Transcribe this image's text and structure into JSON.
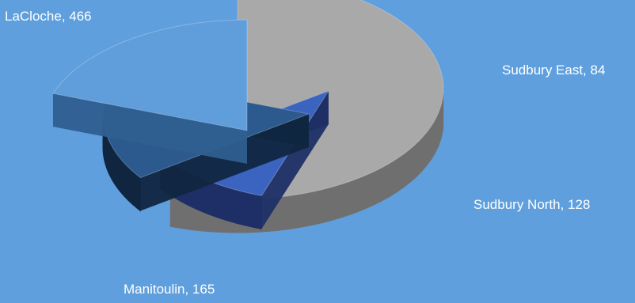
{
  "chart_data": {
    "type": "pie",
    "style": "3d-exploded",
    "title": "",
    "background": "#5f9fdd",
    "slices": [
      {
        "label": "LaCloche, 466",
        "name": "LaCloche",
        "value": 466,
        "top_color": "#a9a9a9",
        "side_color": "#6f6f6f"
      },
      {
        "label": "Sudbury East, 84",
        "name": "Sudbury East",
        "value": 84,
        "top_color": "#3b63c0",
        "side_color": "#1d2f66"
      },
      {
        "label": "Sudbury North, 128",
        "name": "Sudbury North",
        "value": 128,
        "top_color": "#2c5a8e",
        "side_color": "#102640"
      },
      {
        "label": "Manitoulin, 165",
        "name": "Manitoulin",
        "value": 165,
        "top_color": "#5f9edb",
        "side_color": "#2f5f90"
      }
    ]
  }
}
